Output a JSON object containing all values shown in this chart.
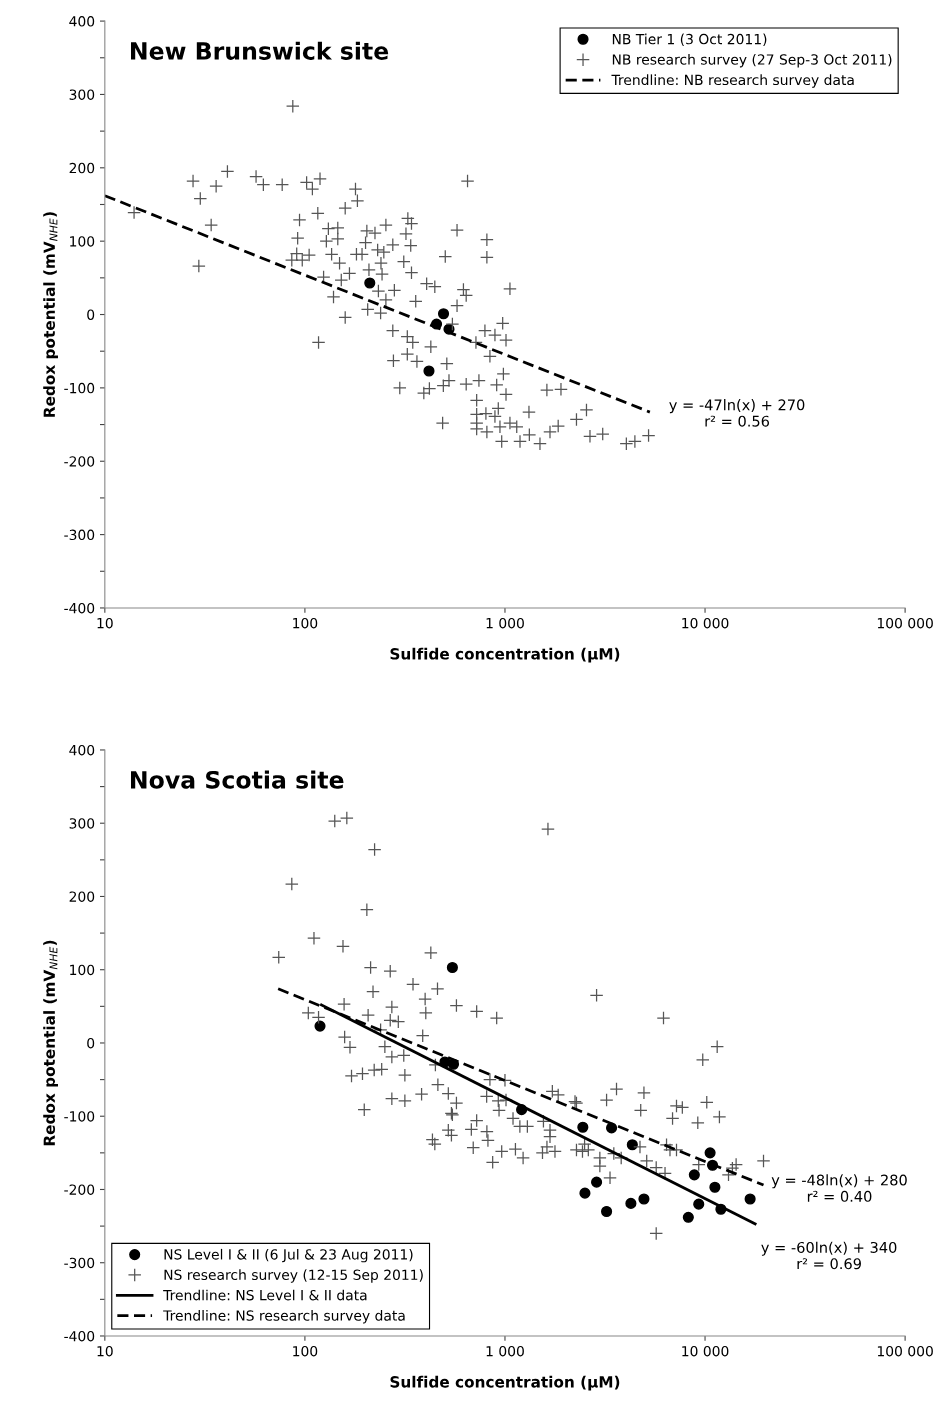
{
  "chart_data": [
    {
      "type": "scatter",
      "title": "New Brunswick site",
      "xlabel": "Sulfide concentration (µM)",
      "ylabel": "Redox potential (mV$_{NHE}$)",
      "log": "x",
      "legend": "top right",
      "xlim": [
        10,
        100000
      ],
      "ylim": [
        -400,
        400
      ],
      "xticks": [
        10,
        100,
        {
          "value": 1000,
          "label": "1 000"
        },
        {
          "value": 10000,
          "label": "10 000"
        },
        {
          "value": 100000,
          "label": "100 000"
        }
      ],
      "yticks": [
        -400,
        {
          "value": -350,
          "label": null
        },
        -300,
        {
          "value": -250,
          "label": null
        },
        -200,
        {
          "value": -150,
          "label": null
        },
        -100,
        {
          "value": -50,
          "label": null
        },
        0,
        {
          "value": 50,
          "label": null
        },
        100,
        {
          "value": 150,
          "label": null
        },
        200,
        {
          "value": 250,
          "label": null
        },
        300,
        {
          "value": 350,
          "label": null
        },
        400
      ],
      "annotations": [
        "y = -47ln(x) + 270\nr² = 0.56"
      ],
      "series": [
        {
          "name": "NB Tier 1 (3 Oct 2011)",
          "marker": "circle",
          "color": "#000000",
          "x": [
            211,
            493,
            455,
            525,
            417
          ],
          "values": [
            43,
            1,
            -13,
            -20,
            -77
          ]
        },
        {
          "name": "NB research survey (27 Sep-3 Oct 2011)",
          "marker": "cross",
          "color": "#555555",
          "x": [
            87,
            27.6,
            36,
            41,
            30,
            14,
            34,
            29.5,
            57,
            62,
            77,
            102,
            109,
            119,
            94,
            116,
            92,
            131,
            146,
            128,
            146,
            91,
            86,
            97,
            105,
            136,
            149,
            167,
            152,
            124,
            139,
            159,
            117,
            181,
            193,
            179,
            183,
            159,
            204,
            224,
            201,
            254,
            231,
            248,
            275,
            327,
            341,
            320,
            338,
            240,
            209,
            243,
            312,
            341,
            280,
            233,
            254,
            206,
            239,
            358,
            275,
            325,
            346,
            277,
            325,
            363,
            650,
            576,
            812,
            812,
            503,
            406,
            446,
            620,
            640,
            1059,
            576,
            426,
            546,
            794,
            891,
            1012,
            974,
            716,
            841,
            512,
            298,
            393,
            419,
            492,
            525,
            640,
            741,
            909,
            1012,
            982,
            1620,
            1905,
            722,
            722,
            722,
            722,
            803,
            891,
            926,
            944,
            1059,
            1145,
            1318,
            1324,
            1189,
            963,
            812,
            488,
            1496,
            1679,
            1845,
            2277,
            2555,
            2660,
            3080,
            4043,
            4460,
            5220
          ],
          "values": [
            284,
            182,
            175,
            195,
            158,
            139,
            122,
            66,
            188,
            177,
            177,
            180,
            171,
            185,
            129,
            138,
            104,
            117,
            118,
            100,
            103,
            83,
            74,
            74,
            81,
            82,
            70,
            56,
            47,
            51,
            24,
            -4,
            -38,
            82,
            82,
            171,
            155,
            145,
            114,
            111,
            98,
            122,
            88,
            85,
            95,
            131,
            124,
            110,
            94,
            70,
            61,
            55,
            72,
            57,
            33,
            32,
            20,
            7,
            2,
            18,
            -22,
            -30,
            -38,
            -63,
            -54,
            -64,
            182,
            115,
            102,
            78,
            79,
            42,
            38,
            34,
            26,
            35,
            12,
            -44,
            -13,
            -22,
            -28,
            -35,
            -12,
            -38,
            -57,
            -67,
            -100,
            -107,
            -101,
            -97,
            -90,
            -95,
            -90,
            -96,
            -109,
            -81,
            -103,
            -102,
            -117,
            -136,
            -148,
            -156,
            -135,
            -139,
            -128,
            -153,
            -148,
            -153,
            -133,
            -164,
            -173,
            -173,
            -160,
            -148,
            -176,
            -160,
            -152,
            -143,
            -130,
            -166,
            -163,
            -176,
            -173,
            -165
          ]
        },
        {
          "name": "Trendline: NB research survey data",
          "type": "line",
          "line_style": "dashed",
          "marker": "none",
          "color": "#000000",
          "x": [
            10,
            5300
          ],
          "values": [
            162,
            -133
          ]
        }
      ]
    },
    {
      "type": "scatter",
      "title": "Nova Scotia site",
      "xlabel": "Sulfide concentration (µM)",
      "ylabel": "Redox potential (mV$_{NHE}$)",
      "log": "x",
      "legend": "bottom left",
      "xlim": [
        10,
        100000
      ],
      "ylim": [
        -400,
        400
      ],
      "xticks": [
        10,
        100,
        {
          "value": 1000,
          "label": "1 000"
        },
        {
          "value": 10000,
          "label": "10 000"
        },
        {
          "value": 100000,
          "label": "100 000"
        }
      ],
      "yticks": [
        -400,
        {
          "value": -350,
          "label": null
        },
        -300,
        {
          "value": -250,
          "label": null
        },
        -200,
        {
          "value": -150,
          "label": null
        },
        -100,
        {
          "value": -50,
          "label": null
        },
        0,
        {
          "value": 50,
          "label": null
        },
        100,
        {
          "value": 150,
          "label": null
        },
        200,
        {
          "value": 250,
          "label": null
        },
        300,
        {
          "value": 350,
          "label": null
        },
        400
      ],
      "annotations": [
        "y = -48ln(x) + 280\nr² = 0.40",
        "y = -60ln(x) + 340\nr² = 0.69"
      ],
      "series": [
        {
          "name": "NS Level I & II (6 Jul & 23 Aug 2011)",
          "marker": "circle",
          "color": "#000000",
          "x": [
            546,
            119,
            501,
            553,
            1211,
            2450,
            3410,
            4330,
            10600,
            10900,
            8840,
            11200,
            9300,
            12000,
            8250,
            2870,
            2510,
            3220,
            4260,
            4950,
            16800
          ],
          "values": [
            103,
            23,
            -26,
            -29,
            -91,
            -115,
            -116,
            -139,
            -150,
            -167,
            -180,
            -197,
            -220,
            -227,
            -238,
            -190,
            -205,
            -230,
            -219,
            -213,
            -213
          ]
        },
        {
          "name": "NS research survey (12-15 Sep 2011)",
          "marker": "cross",
          "color": "#555555",
          "x": [
            141,
            162,
            223,
            86,
            204,
            1640,
            111,
            155,
            74,
            426,
            213,
            267,
            347,
            460,
            219,
            399,
            402,
            572,
            722,
            909,
            157,
            104,
            117,
            207,
            272,
            267,
            293,
            239,
            388,
            158,
            168,
            251,
            272,
            312,
            171,
            194,
            222,
            242,
            316,
            383,
            462,
            272,
            316,
            198,
            449,
            521,
            572,
            841,
            1000,
            1725,
            2239,
            810,
            926,
            540,
            934,
            2870,
            6200,
            11500,
            9740,
            546,
            521,
            540,
            434,
            446,
            694,
            868,
            963,
            1128,
            1232,
            722,
            679,
            812,
            822,
            1012,
            1097,
            1187,
            1294,
            1557,
            1679,
            1679,
            1540,
            1621,
            1778,
            1845,
            2277,
            2277,
            2440,
            2610,
            2500,
            2980,
            2980,
            3350,
            3220,
            3610,
            3500,
            3810,
            4730,
            5110,
            5700,
            6310,
            4950,
            4770,
            6420,
            6680,
            7200,
            6880,
            7200,
            7700,
            9200,
            10200,
            11800,
            13100,
            13700,
            5700,
            14300,
            19600,
            9300
          ],
          "values": [
            303,
            307,
            264,
            217,
            182,
            292,
            143,
            132,
            117,
            123,
            103,
            98,
            80,
            74,
            70,
            60,
            41,
            51,
            43,
            34,
            53,
            41,
            35,
            38,
            49,
            31,
            29,
            18,
            10,
            8,
            -6,
            -5,
            -19,
            -17,
            -45,
            -42,
            -37,
            -36,
            -44,
            -70,
            -57,
            -76,
            -79,
            -91,
            -30,
            -69,
            -82,
            -50,
            -51,
            -66,
            -80,
            -73,
            -79,
            -96,
            -92,
            65,
            34,
            -5,
            -23,
            -98,
            -119,
            -126,
            -132,
            -138,
            -143,
            -163,
            -148,
            -145,
            -157,
            -106,
            -118,
            -121,
            -133,
            -78,
            -103,
            -114,
            -114,
            -107,
            -119,
            -128,
            -150,
            -142,
            -148,
            -71,
            -82,
            -146,
            -148,
            -146,
            -138,
            -157,
            -168,
            -184,
            -78,
            -63,
            -151,
            -157,
            -142,
            -161,
            -170,
            -178,
            -68,
            -92,
            -139,
            -146,
            -146,
            -103,
            -86,
            -88,
            -109,
            -81,
            -101,
            -180,
            -171,
            -260,
            -166,
            -161,
            -166
          ]
        },
        {
          "name": "Trendline: NS Level I & II data",
          "type": "line",
          "line_style": "solid",
          "marker": "none",
          "color": "#000000",
          "x": [
            121,
            17800
          ],
          "values": [
            52,
            -247
          ]
        },
        {
          "name": "Trendline: NS research survey data",
          "type": "line",
          "line_style": "dashed",
          "marker": "none",
          "color": "#000000",
          "x": [
            73.5,
            19600
          ],
          "values": [
            74,
            -194
          ]
        }
      ]
    }
  ]
}
